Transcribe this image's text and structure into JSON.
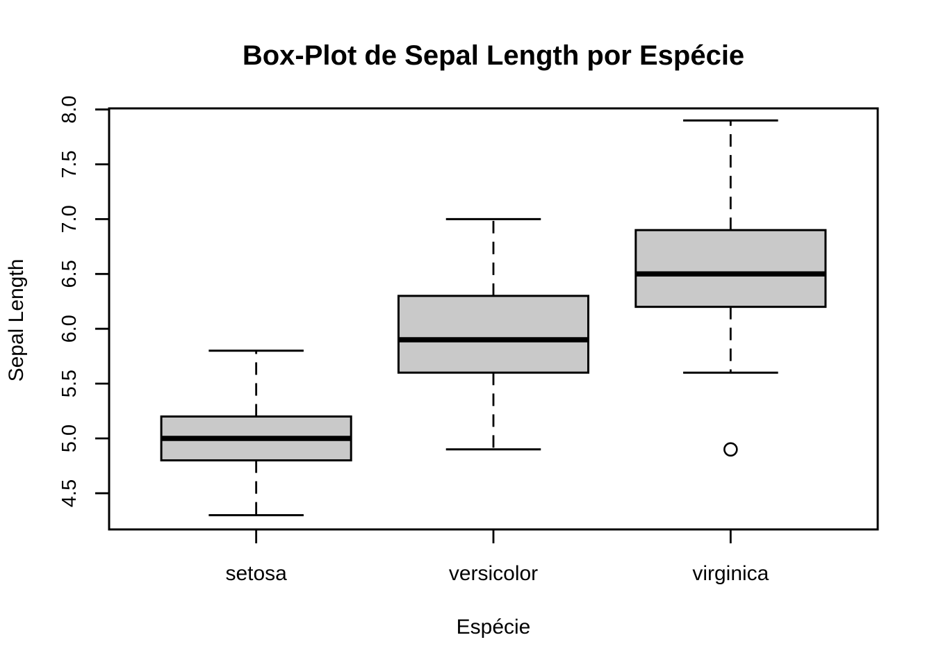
{
  "figure": {
    "background": "#FFFFFF"
  },
  "chart_data": {
    "type": "boxplot",
    "title": "Box-Plot de Sepal Length por Espécie",
    "xlabel": "Espécie",
    "ylabel": "Sepal Length",
    "categories": [
      "setosa",
      "versicolor",
      "virginica"
    ],
    "y_ticks": [
      4.5,
      5.0,
      5.5,
      6.0,
      6.5,
      7.0,
      7.5,
      8.0
    ],
    "ylim": [
      4.17,
      8.01
    ],
    "grid": false,
    "legend_position": "none",
    "box_fill": "#C9C9C9",
    "line_color": "#000000",
    "boxes": [
      {
        "category": "setosa",
        "whisker_low": 4.3,
        "q1": 4.8,
        "median": 5.0,
        "q3": 5.2,
        "whisker_high": 5.8,
        "outliers": []
      },
      {
        "category": "versicolor",
        "whisker_low": 4.9,
        "q1": 5.6,
        "median": 5.9,
        "q3": 6.3,
        "whisker_high": 7.0,
        "outliers": []
      },
      {
        "category": "virginica",
        "whisker_low": 5.6,
        "q1": 6.2,
        "median": 6.5,
        "q3": 6.9,
        "whisker_high": 7.9,
        "outliers": [
          4.9
        ]
      }
    ]
  }
}
